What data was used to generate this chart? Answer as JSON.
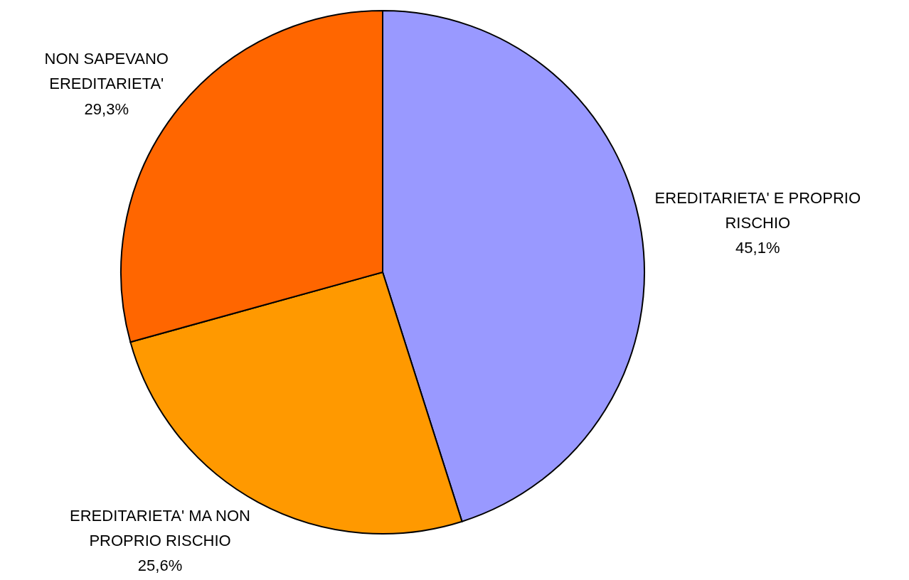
{
  "chart_data": {
    "type": "pie",
    "categories": [
      "EREDITARIETA' E PROPRIO RISCHIO",
      "EREDITARIETA' MA NON PROPRIO RISCHIO",
      "NON SAPEVANO EREDITARIETA'"
    ],
    "values": [
      45.1,
      25.6,
      29.3
    ],
    "colors": [
      "#9999ff",
      "#ff9900",
      "#ff6600"
    ],
    "value_labels": [
      "45,1%",
      "25,6%",
      "29,3%"
    ]
  }
}
